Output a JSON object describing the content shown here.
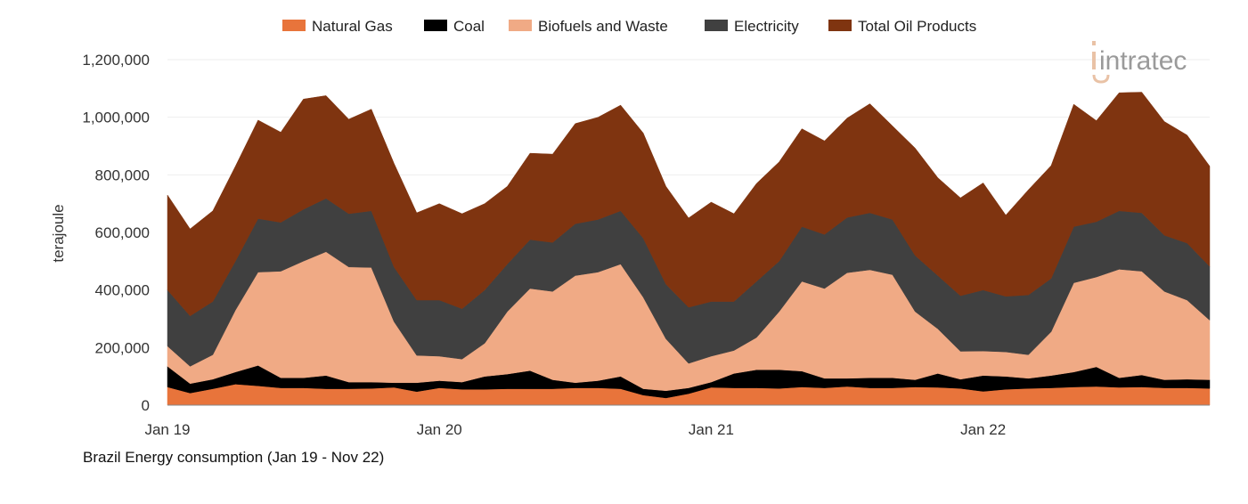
{
  "chart_data": {
    "type": "area",
    "stacked": true,
    "title": "Brazil Energy consumption (Jan 19 - Nov 22)",
    "xlabel": "",
    "ylabel": "terajoule",
    "ylim": [
      0,
      1200000
    ],
    "yticks": [
      0,
      200000,
      400000,
      600000,
      800000,
      1000000,
      1200000
    ],
    "ytick_labels": [
      "0",
      "200,000",
      "400,000",
      "600,000",
      "800,000",
      "1,000,000",
      "1,200,000"
    ],
    "xtick_labels": [
      "Jan 19",
      "Jan 20",
      "Jan 21",
      "Jan 22"
    ],
    "x_start": "2019-01",
    "x_end": "2022-11",
    "grid": true,
    "legend_position": "top",
    "series": [
      {
        "name": "Natural Gas",
        "color": "#E8743B",
        "values": [
          63000,
          42000,
          57000,
          73000,
          67000,
          60000,
          60000,
          57000,
          57000,
          58000,
          62000,
          47000,
          60000,
          55000,
          55000,
          57000,
          57000,
          57000,
          60000,
          60000,
          57000,
          35000,
          25000,
          40000,
          62000,
          60000,
          60000,
          58000,
          63000,
          60000,
          65000,
          60000,
          60000,
          63000,
          62000,
          58000,
          48000,
          55000,
          58000,
          60000,
          63000,
          65000,
          62000,
          63000,
          60000,
          60000,
          58000
        ]
      },
      {
        "name": "Coal",
        "color": "#000000",
        "values": [
          72000,
          33000,
          33000,
          42000,
          71000,
          35000,
          35000,
          46000,
          23000,
          22000,
          16000,
          31000,
          25000,
          25000,
          45000,
          51000,
          63000,
          31000,
          18000,
          25000,
          43000,
          22000,
          25000,
          20000,
          18000,
          50000,
          63000,
          65000,
          55000,
          33000,
          28000,
          35000,
          35000,
          25000,
          48000,
          32000,
          55000,
          45000,
          35000,
          43000,
          52000,
          68000,
          33000,
          42000,
          28000,
          30000,
          30000
        ]
      },
      {
        "name": "Biofuels and Waste",
        "color": "#F0AA85",
        "values": [
          70000,
          60000,
          85000,
          215000,
          324000,
          370000,
          405000,
          430000,
          400000,
          398000,
          212000,
          95000,
          85000,
          80000,
          115000,
          217000,
          285000,
          307000,
          372000,
          377000,
          390000,
          318000,
          180000,
          85000,
          90000,
          80000,
          112000,
          202000,
          312000,
          312000,
          367000,
          375000,
          358000,
          237000,
          155000,
          97000,
          85000,
          85000,
          82000,
          152000,
          310000,
          312000,
          377000,
          360000,
          307000,
          275000,
          207000
        ]
      },
      {
        "name": "Electricity",
        "color": "#404040",
        "values": [
          195000,
          175000,
          185000,
          170000,
          186000,
          170000,
          180000,
          185000,
          185000,
          197000,
          190000,
          192000,
          195000,
          175000,
          185000,
          165000,
          170000,
          170000,
          180000,
          183000,
          185000,
          205000,
          190000,
          195000,
          190000,
          170000,
          195000,
          175000,
          190000,
          188000,
          192000,
          198000,
          192000,
          195000,
          185000,
          193000,
          212000,
          193000,
          208000,
          185000,
          195000,
          192000,
          203000,
          203000,
          195000,
          198000,
          187000
        ]
      },
      {
        "name": "Total Oil Products",
        "color": "#7F3410",
        "values": [
          330000,
          302000,
          315000,
          330000,
          342000,
          313000,
          383000,
          357000,
          328000,
          353000,
          360000,
          303000,
          335000,
          330000,
          300000,
          270000,
          300000,
          307000,
          348000,
          355000,
          367000,
          365000,
          340000,
          310000,
          345000,
          305000,
          340000,
          345000,
          340000,
          325000,
          345000,
          379000,
          325000,
          373000,
          340000,
          340000,
          372000,
          282000,
          365000,
          392000,
          425000,
          351000,
          410000,
          419000,
          395000,
          375000,
          348000
        ]
      }
    ]
  },
  "logo": {
    "text": "intratec",
    "color": "#9a9a9a",
    "accent": "#E9C2A6"
  }
}
